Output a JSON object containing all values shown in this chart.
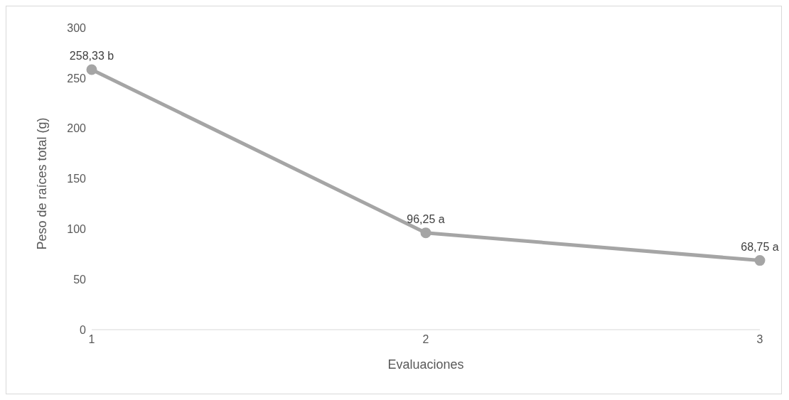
{
  "chart_data": {
    "type": "line",
    "xlabel": "Evaluaciones",
    "ylabel": "Peso de raíces total (g)",
    "categories": [
      "1",
      "2",
      "3"
    ],
    "series": [
      {
        "color": "#a5a5a5",
        "values": [
          258.33,
          96.25,
          68.75
        ],
        "value_labels": [
          "258,33 b",
          "96,25 a",
          "68,75 a"
        ]
      }
    ],
    "ylim": [
      0,
      300
    ],
    "yticks": [
      0,
      50,
      100,
      150,
      200,
      250,
      300
    ],
    "grid": false,
    "legend": false,
    "marker": "circle",
    "line_style": "solid"
  }
}
